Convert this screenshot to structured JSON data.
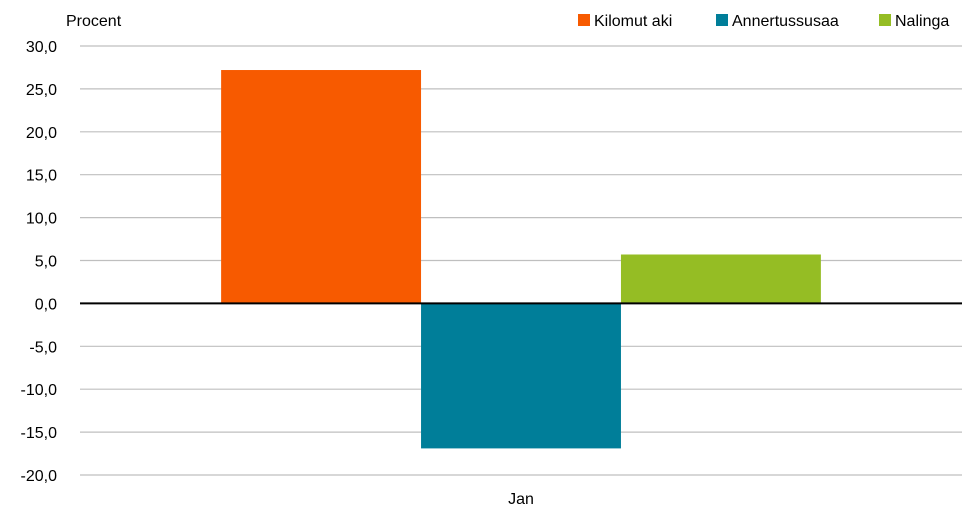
{
  "chart_data": {
    "type": "bar",
    "title": "",
    "xlabel": "",
    "ylabel": "Procent",
    "categories": [
      "Jan"
    ],
    "ylim": [
      -20,
      30
    ],
    "ytick_step": 5,
    "ytick_labels": [
      "30,0",
      "25,0",
      "20,0",
      "15,0",
      "10,0",
      "5,0",
      "0,0",
      "-5,0",
      "-10,0",
      "-15,0",
      "-20,0"
    ],
    "grid": true,
    "legend_position": "top-right",
    "series": [
      {
        "name": "Kilomut aki",
        "values": [
          27.2
        ],
        "color": "#F75A00"
      },
      {
        "name": "Annertussusaa",
        "values": [
          -16.9
        ],
        "color": "#007E99"
      },
      {
        "name": "Nalinga",
        "values": [
          5.7
        ],
        "color": "#95BD24"
      }
    ]
  }
}
